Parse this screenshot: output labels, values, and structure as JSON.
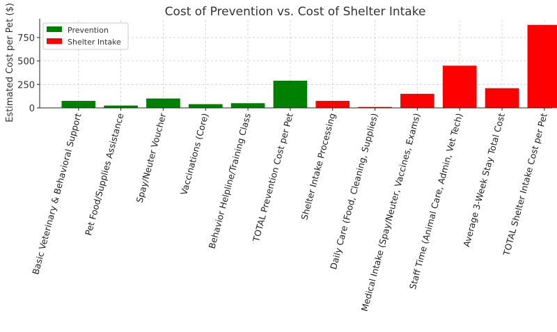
{
  "chart_data": {
    "type": "bar",
    "title": "Cost of Prevention vs. Cost of Shelter Intake",
    "xlabel": "",
    "ylabel": "Estimated Cost per Pet ($)",
    "ylim": [
      0,
      935
    ],
    "yticks": [
      0,
      250,
      500,
      750
    ],
    "grid": true,
    "legend_position": "top-left",
    "legend": [
      {
        "name": "Prevention",
        "color": "#008000"
      },
      {
        "name": "Shelter Intake",
        "color": "#ff0000"
      }
    ],
    "categories": [
      "Basic Veterinary & Behavioral Support",
      "Pet Food/Supplies Assistance",
      "Spay/Neuter Voucher",
      "Vaccinations (Core)",
      "Behavior Helpline/Training Class",
      "TOTAL Prevention Cost per Pet",
      "Shelter Intake Processing",
      "Daily Care (Food, Cleaning, Supplies)",
      "Medical Intake (Spay/Neuter, Vaccines, Exams)",
      "Staff Time (Animal Care, Admin, Vet Tech)",
      "Average 3-Week Stay Total Cost",
      "TOTAL Shelter Intake Cost per Pet"
    ],
    "values": [
      75,
      25,
      100,
      40,
      50,
      290,
      75,
      10,
      150,
      450,
      210,
      885
    ],
    "groups": [
      "Prevention",
      "Prevention",
      "Prevention",
      "Prevention",
      "Prevention",
      "Prevention",
      "Shelter Intake",
      "Shelter Intake",
      "Shelter Intake",
      "Shelter Intake",
      "Shelter Intake",
      "Shelter Intake"
    ]
  }
}
